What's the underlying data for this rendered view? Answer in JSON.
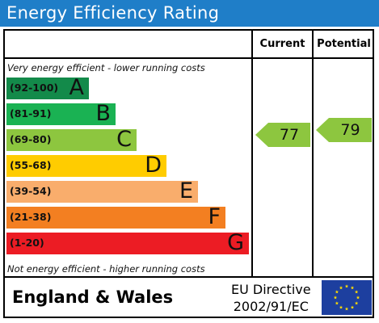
{
  "title": "Energy Efficiency Rating",
  "columns": {
    "current": "Current",
    "potential": "Potential"
  },
  "notes": {
    "top": "Very energy efficient - lower running costs",
    "bottom": "Not energy efficient - higher running costs"
  },
  "footer": {
    "country": "England & Wales",
    "directive_line1": "EU Directive",
    "directive_line2": "2002/91/EC"
  },
  "colors": {
    "title_bar": "#1f7ec8",
    "arrow": "#8dc63f",
    "flag": "#1d3f9f",
    "flag_stars": "#ffdd00"
  },
  "chart_data": {
    "type": "bar",
    "title": "Energy Efficiency Rating",
    "bands": [
      {
        "letter": "A",
        "range": "(92-100)",
        "color": "#138a4a"
      },
      {
        "letter": "B",
        "range": "(81-91)",
        "color": "#1ab253"
      },
      {
        "letter": "C",
        "range": "(69-80)",
        "color": "#8dc63f"
      },
      {
        "letter": "D",
        "range": "(55-68)",
        "color": "#ffcc00"
      },
      {
        "letter": "E",
        "range": "(39-54)",
        "color": "#f9ad6c"
      },
      {
        "letter": "F",
        "range": "(21-38)",
        "color": "#f37f21"
      },
      {
        "letter": "G",
        "range": "(1-20)",
        "color": "#ec1c24"
      }
    ],
    "current": {
      "value": "77",
      "band": "C"
    },
    "potential": {
      "value": "79",
      "band": "C"
    }
  }
}
